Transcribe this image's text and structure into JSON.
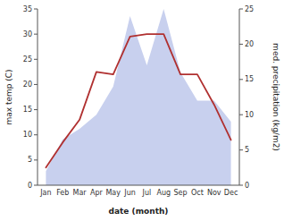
{
  "chart_data": {
    "type": "line",
    "xlabel": "date (month)",
    "ylabel": "max temp (C)",
    "y2label": "med. precipitation (kg/m2)",
    "categories": [
      "Jan",
      "Feb",
      "Mar",
      "Apr",
      "May",
      "Jun",
      "Jul",
      "Aug",
      "Sep",
      "Oct",
      "Nov",
      "Dec"
    ],
    "series": [
      {
        "type": "area",
        "axis": "y2",
        "color": "#c8d0ee",
        "values": [
          2.0,
          6.5,
          8.0,
          10.0,
          14.0,
          24.0,
          17.0,
          25.0,
          16.0,
          12.0,
          12.0,
          9.0
        ]
      },
      {
        "type": "line",
        "color": "#b03030",
        "values": [
          3.5,
          8.5,
          13.0,
          22.5,
          22.0,
          29.5,
          30.0,
          30.0,
          22.0,
          22.0,
          16.0,
          9.0
        ]
      }
    ],
    "ylim": [
      0,
      35
    ],
    "yticks": [
      0,
      5,
      10,
      15,
      20,
      25,
      30,
      35
    ],
    "y2lim": [
      0,
      25
    ],
    "y2ticks": [
      0,
      5,
      10,
      15,
      20,
      25
    ],
    "grid": false
  }
}
